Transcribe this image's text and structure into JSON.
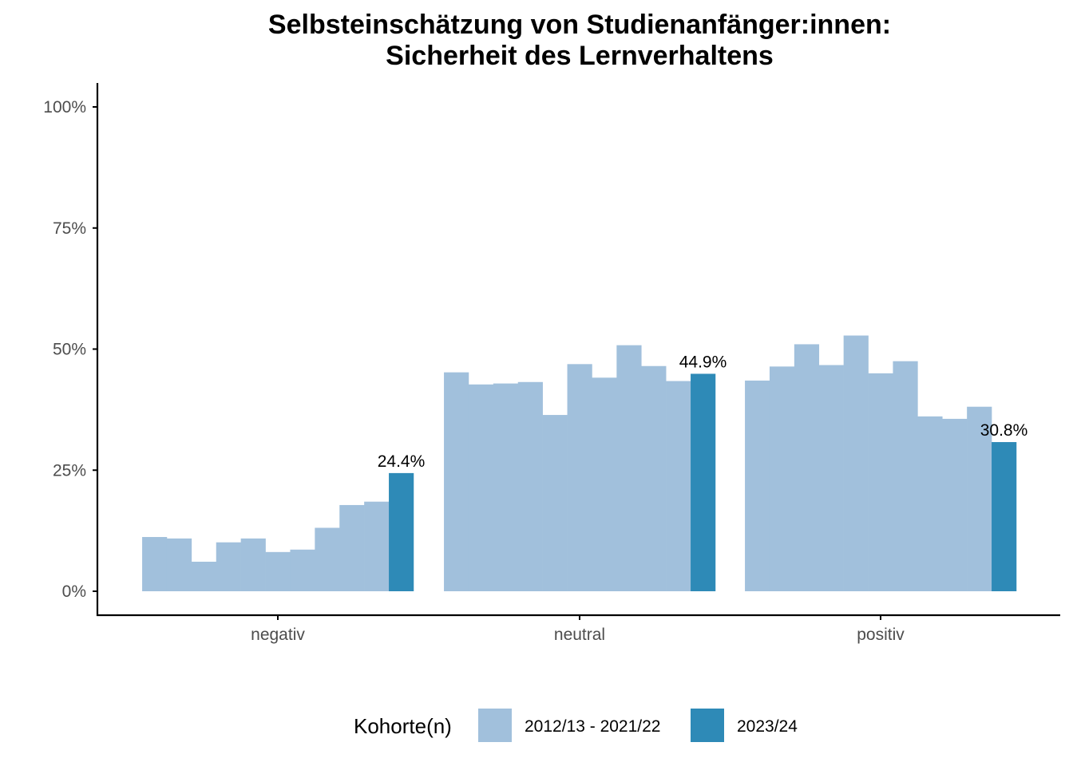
{
  "chart_data": {
    "type": "bar",
    "title": [
      "Selbsteinschätzung von Studienanfänger:innen:",
      "Sicherheit des Lernverhaltens"
    ],
    "xlabel": "",
    "ylabel": "",
    "ylim": [
      0,
      1
    ],
    "y_ticks": [
      0,
      0.25,
      0.5,
      0.75,
      1.0
    ],
    "y_tick_labels": [
      "0%",
      "25%",
      "50%",
      "75%",
      "100%"
    ],
    "grid": false,
    "categories": [
      "negativ",
      "neutral",
      "positiv"
    ],
    "groups": [
      {
        "category": "negativ",
        "bars": [
          {
            "cohort": "2012/13 - 2021/22",
            "value": 0.112
          },
          {
            "cohort": "2012/13 - 2021/22",
            "value": 0.109
          },
          {
            "cohort": "2012/13 - 2021/22",
            "value": 0.061
          },
          {
            "cohort": "2012/13 - 2021/22",
            "value": 0.101
          },
          {
            "cohort": "2012/13 - 2021/22",
            "value": 0.109
          },
          {
            "cohort": "2012/13 - 2021/22",
            "value": 0.081
          },
          {
            "cohort": "2012/13 - 2021/22",
            "value": 0.086
          },
          {
            "cohort": "2012/13 - 2021/22",
            "value": 0.131
          },
          {
            "cohort": "2012/13 - 2021/22",
            "value": 0.178
          },
          {
            "cohort": "2012/13 - 2021/22",
            "value": 0.185
          },
          {
            "cohort": "2023/24",
            "value": 0.244,
            "label": "24.4%"
          }
        ]
      },
      {
        "category": "neutral",
        "bars": [
          {
            "cohort": "2012/13 - 2021/22",
            "value": 0.452
          },
          {
            "cohort": "2012/13 - 2021/22",
            "value": 0.427
          },
          {
            "cohort": "2012/13 - 2021/22",
            "value": 0.429
          },
          {
            "cohort": "2012/13 - 2021/22",
            "value": 0.432
          },
          {
            "cohort": "2012/13 - 2021/22",
            "value": 0.364
          },
          {
            "cohort": "2012/13 - 2021/22",
            "value": 0.469
          },
          {
            "cohort": "2012/13 - 2021/22",
            "value": 0.441
          },
          {
            "cohort": "2012/13 - 2021/22",
            "value": 0.508
          },
          {
            "cohort": "2012/13 - 2021/22",
            "value": 0.465
          },
          {
            "cohort": "2012/13 - 2021/22",
            "value": 0.434
          },
          {
            "cohort": "2023/24",
            "value": 0.449,
            "label": "44.9%"
          }
        ]
      },
      {
        "category": "positiv",
        "bars": [
          {
            "cohort": "2012/13 - 2021/22",
            "value": 0.435
          },
          {
            "cohort": "2012/13 - 2021/22",
            "value": 0.464
          },
          {
            "cohort": "2012/13 - 2021/22",
            "value": 0.51
          },
          {
            "cohort": "2012/13 - 2021/22",
            "value": 0.467
          },
          {
            "cohort": "2012/13 - 2021/22",
            "value": 0.528
          },
          {
            "cohort": "2012/13 - 2021/22",
            "value": 0.45
          },
          {
            "cohort": "2012/13 - 2021/22",
            "value": 0.475
          },
          {
            "cohort": "2012/13 - 2021/22",
            "value": 0.361
          },
          {
            "cohort": "2012/13 - 2021/22",
            "value": 0.356
          },
          {
            "cohort": "2012/13 - 2021/22",
            "value": 0.381
          },
          {
            "cohort": "2023/24",
            "value": 0.308,
            "label": "30.8%"
          }
        ]
      }
    ],
    "legend": {
      "title": "Kohorte(n)",
      "placement": "bottom",
      "items": [
        {
          "label": "2012/13 - 2021/22",
          "color": "#a1c0dc"
        },
        {
          "label": "2023/24",
          "color": "#2e8ab7"
        }
      ]
    }
  }
}
